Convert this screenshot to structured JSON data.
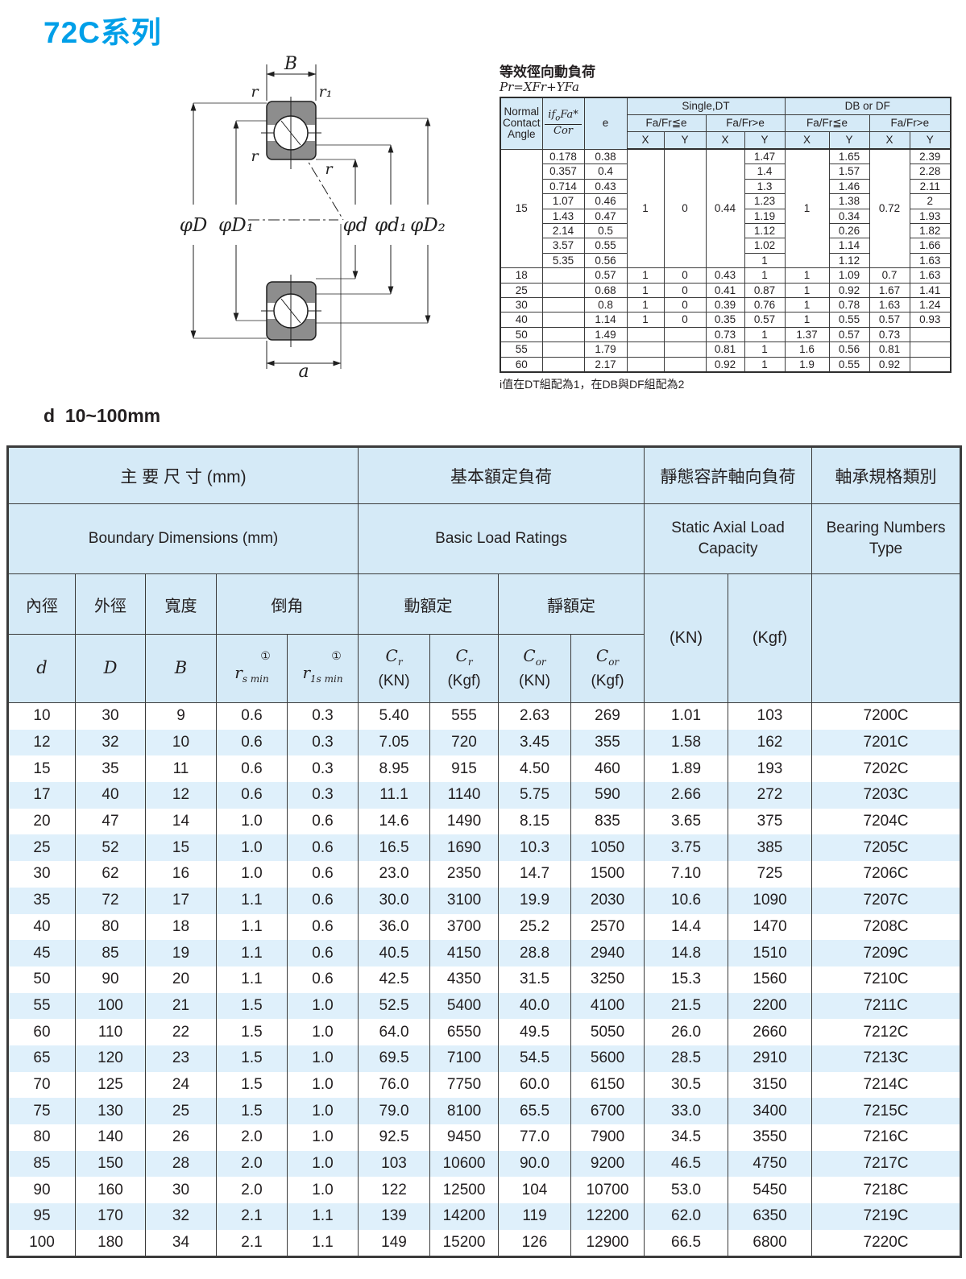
{
  "page": {
    "title": "72C系列",
    "section_label": "d  10~100mm"
  },
  "colors": {
    "accent_blue": "#009fe8",
    "header_bg": "#d5eaf7",
    "row_alt_bg": "#dff0fb",
    "diagram_gray": "#8d8d8d"
  },
  "diagram": {
    "label_B": "B",
    "label_r_top": "r",
    "label_r1": "r₁",
    "label_r_mid": "r",
    "label_r_inner": "r",
    "label_phiD": "φD",
    "label_phiD1": "φD₁",
    "label_phid": "φd",
    "label_phid1": "φd₁",
    "label_phiD2": "φD₂",
    "label_a": "a"
  },
  "load_factor_table": {
    "title": "等效徑向動負荷",
    "formula": "Pr=XFr+YFa",
    "header": {
      "angle_l1": "Normal",
      "angle_l2": "Contact",
      "angle_l3": "Angle",
      "ratio_pre": "if",
      "ratio_sub": "o",
      "ratio_post": "Fa*",
      "ratio_den": "Cor",
      "e": "e",
      "group_single": "Single,DT",
      "group_db": "DB or DF",
      "sub_le": "Fa/Fr≦e",
      "sub_gt": "Fa/Fr>e",
      "x": "X",
      "y": "Y"
    },
    "rows": [
      [
        {
          "t": "15",
          "rs": 8
        },
        {
          "t": "0.178"
        },
        {
          "t": "0.38"
        },
        {
          "t": "1",
          "rs": 8
        },
        {
          "t": "0",
          "rs": 8
        },
        {
          "t": "0.44",
          "rs": 8
        },
        {
          "t": "1.47"
        },
        {
          "t": "1",
          "rs": 8
        },
        {
          "t": "1.65"
        },
        {
          "t": "0.72",
          "rs": 8
        },
        {
          "t": "2.39"
        }
      ],
      [
        {
          "t": "0.357"
        },
        {
          "t": "0.4"
        },
        {
          "t": "1.4"
        },
        {
          "t": "1.57"
        },
        {
          "t": "2.28"
        }
      ],
      [
        {
          "t": "0.714"
        },
        {
          "t": "0.43"
        },
        {
          "t": "1.3"
        },
        {
          "t": "1.46"
        },
        {
          "t": "2.11"
        }
      ],
      [
        {
          "t": "1.07"
        },
        {
          "t": "0.46"
        },
        {
          "t": "1.23"
        },
        {
          "t": "1.38"
        },
        {
          "t": "2"
        }
      ],
      [
        {
          "t": "1.43"
        },
        {
          "t": "0.47"
        },
        {
          "t": "1.19"
        },
        {
          "t": "0.34"
        },
        {
          "t": "1.93"
        }
      ],
      [
        {
          "t": "2.14"
        },
        {
          "t": "0.5"
        },
        {
          "t": "1.12"
        },
        {
          "t": "0.26"
        },
        {
          "t": "1.82"
        }
      ],
      [
        {
          "t": "3.57"
        },
        {
          "t": "0.55"
        },
        {
          "t": "1.02"
        },
        {
          "t": "1.14"
        },
        {
          "t": "1.66"
        }
      ],
      [
        {
          "t": "5.35"
        },
        {
          "t": "0.56"
        },
        {
          "t": "1"
        },
        {
          "t": "1.12"
        },
        {
          "t": "1.63"
        }
      ],
      [
        {
          "t": "18"
        },
        {
          "t": ""
        },
        {
          "t": "0.57"
        },
        {
          "t": "1"
        },
        {
          "t": "0"
        },
        {
          "t": "0.43"
        },
        {
          "t": "1"
        },
        {
          "t": "1"
        },
        {
          "t": "1.09"
        },
        {
          "t": "0.7"
        },
        {
          "t": "1.63"
        }
      ],
      [
        {
          "t": "25"
        },
        {
          "t": ""
        },
        {
          "t": "0.68"
        },
        {
          "t": "1"
        },
        {
          "t": "0"
        },
        {
          "t": "0.41"
        },
        {
          "t": "0.87"
        },
        {
          "t": "1"
        },
        {
          "t": "0.92"
        },
        {
          "t": "1.67"
        },
        {
          "t": "1.41"
        }
      ],
      [
        {
          "t": "30"
        },
        {
          "t": ""
        },
        {
          "t": "0.8"
        },
        {
          "t": "1"
        },
        {
          "t": "0"
        },
        {
          "t": "0.39"
        },
        {
          "t": "0.76"
        },
        {
          "t": "1"
        },
        {
          "t": "0.78"
        },
        {
          "t": "1.63"
        },
        {
          "t": "1.24"
        }
      ],
      [
        {
          "t": "40"
        },
        {
          "t": ""
        },
        {
          "t": "1.14"
        },
        {
          "t": "1"
        },
        {
          "t": "0"
        },
        {
          "t": "0.35"
        },
        {
          "t": "0.57"
        },
        {
          "t": "1"
        },
        {
          "t": "0.55"
        },
        {
          "t": "0.57"
        },
        {
          "t": "0.93"
        }
      ],
      [
        {
          "t": "50"
        },
        {
          "t": ""
        },
        {
          "t": "1.49"
        },
        {
          "t": ""
        },
        {
          "t": ""
        },
        {
          "t": "0.73"
        },
        {
          "t": "1"
        },
        {
          "t": "1.37"
        },
        {
          "t": "0.57"
        },
        {
          "t": "0.73"
        },
        {
          "t": ""
        }
      ],
      [
        {
          "t": "55"
        },
        {
          "t": ""
        },
        {
          "t": "1.79"
        },
        {
          "t": ""
        },
        {
          "t": ""
        },
        {
          "t": "0.81"
        },
        {
          "t": "1"
        },
        {
          "t": "1.6"
        },
        {
          "t": "0.56"
        },
        {
          "t": "0.81"
        },
        {
          "t": ""
        }
      ],
      [
        {
          "t": "60"
        },
        {
          "t": ""
        },
        {
          "t": "2.17"
        },
        {
          "t": ""
        },
        {
          "t": ""
        },
        {
          "t": "0.92"
        },
        {
          "t": "1"
        },
        {
          "t": "1.9"
        },
        {
          "t": "0.55"
        },
        {
          "t": "0.92"
        },
        {
          "t": ""
        }
      ]
    ],
    "footnote": "i值在DT組配為1，在DB與DF組配為2"
  },
  "main_table": {
    "group_headers": {
      "dims_zh": "主 要 尺 寸 (mm)",
      "dims_en": "Boundary Dimensions (mm)",
      "load_zh": "基本額定負荷",
      "load_en": "Basic Load Ratings",
      "static_zh": "靜態容許軸向負荷",
      "static_en": "Static Axial Load Capacity",
      "bearing_zh": "軸承規格類別",
      "bearing_en": "Bearing Numbers Type"
    },
    "col_headers": {
      "bore_zh": "內徑",
      "od_zh": "外徑",
      "width_zh": "寬度",
      "chamfer_zh": "倒角",
      "dyn_zh": "動額定",
      "stat_zh": "靜額定",
      "static_kn": "(KN)",
      "static_kgf": "(Kgf)",
      "d": "d",
      "D": "D",
      "B": "B",
      "note_mark": "①",
      "r_sym": "r",
      "rs_sub": "s min",
      "r1s_sub": "1s min",
      "c_sym": "C",
      "cr_sub": "r",
      "cor_sub": "or",
      "unit_kn": "(KN)",
      "unit_kgf": "(Kgf)"
    },
    "rows": [
      [
        "10",
        "30",
        "9",
        "0.6",
        "0.3",
        "5.40",
        "555",
        "2.63",
        "269",
        "1.01",
        "103",
        "7200C"
      ],
      [
        "12",
        "32",
        "10",
        "0.6",
        "0.3",
        "7.05",
        "720",
        "3.45",
        "355",
        "1.58",
        "162",
        "7201C"
      ],
      [
        "15",
        "35",
        "11",
        "0.6",
        "0.3",
        "8.95",
        "915",
        "4.50",
        "460",
        "1.89",
        "193",
        "7202C"
      ],
      [
        "17",
        "40",
        "12",
        "0.6",
        "0.3",
        "11.1",
        "1140",
        "5.75",
        "590",
        "2.66",
        "272",
        "7203C"
      ],
      [
        "20",
        "47",
        "14",
        "1.0",
        "0.6",
        "14.6",
        "1490",
        "8.15",
        "835",
        "3.65",
        "375",
        "7204C"
      ],
      [
        "25",
        "52",
        "15",
        "1.0",
        "0.6",
        "16.5",
        "1690",
        "10.3",
        "1050",
        "3.75",
        "385",
        "7205C"
      ],
      [
        "30",
        "62",
        "16",
        "1.0",
        "0.6",
        "23.0",
        "2350",
        "14.7",
        "1500",
        "7.10",
        "725",
        "7206C"
      ],
      [
        "35",
        "72",
        "17",
        "1.1",
        "0.6",
        "30.0",
        "3100",
        "19.9",
        "2030",
        "10.6",
        "1090",
        "7207C"
      ],
      [
        "40",
        "80",
        "18",
        "1.1",
        "0.6",
        "36.0",
        "3700",
        "25.2",
        "2570",
        "14.4",
        "1470",
        "7208C"
      ],
      [
        "45",
        "85",
        "19",
        "1.1",
        "0.6",
        "40.5",
        "4150",
        "28.8",
        "2940",
        "14.8",
        "1510",
        "7209C"
      ],
      [
        "50",
        "90",
        "20",
        "1.1",
        "0.6",
        "42.5",
        "4350",
        "31.5",
        "3250",
        "15.3",
        "1560",
        "7210C"
      ],
      [
        "55",
        "100",
        "21",
        "1.5",
        "1.0",
        "52.5",
        "5400",
        "40.0",
        "4100",
        "21.5",
        "2200",
        "7211C"
      ],
      [
        "60",
        "110",
        "22",
        "1.5",
        "1.0",
        "64.0",
        "6550",
        "49.5",
        "5050",
        "26.0",
        "2660",
        "7212C"
      ],
      [
        "65",
        "120",
        "23",
        "1.5",
        "1.0",
        "69.5",
        "7100",
        "54.5",
        "5600",
        "28.5",
        "2910",
        "7213C"
      ],
      [
        "70",
        "125",
        "24",
        "1.5",
        "1.0",
        "76.0",
        "7750",
        "60.0",
        "6150",
        "30.5",
        "3150",
        "7214C"
      ],
      [
        "75",
        "130",
        "25",
        "1.5",
        "1.0",
        "79.0",
        "8100",
        "65.5",
        "6700",
        "33.0",
        "3400",
        "7215C"
      ],
      [
        "80",
        "140",
        "26",
        "2.0",
        "1.0",
        "92.5",
        "9450",
        "77.0",
        "7900",
        "34.5",
        "3550",
        "7216C"
      ],
      [
        "85",
        "150",
        "28",
        "2.0",
        "1.0",
        "103",
        "10600",
        "90.0",
        "9200",
        "46.5",
        "4750",
        "7217C"
      ],
      [
        "90",
        "160",
        "30",
        "2.0",
        "1.0",
        "122",
        "12500",
        "104",
        "10700",
        "53.0",
        "5450",
        "7218C"
      ],
      [
        "95",
        "170",
        "32",
        "2.1",
        "1.1",
        "139",
        "14200",
        "119",
        "12200",
        "62.0",
        "6350",
        "7219C"
      ],
      [
        "100",
        "180",
        "34",
        "2.1",
        "1.1",
        "149",
        "15200",
        "126",
        "12900",
        "66.5",
        "6800",
        "7220C"
      ]
    ]
  }
}
